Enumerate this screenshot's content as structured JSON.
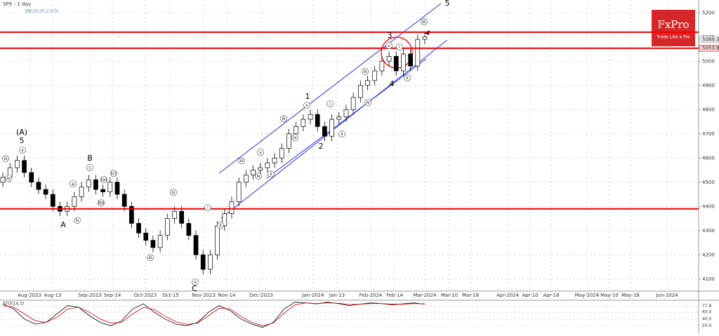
{
  "header": {
    "symbol": "SPX - 1 day",
    "indicator": "BB(20,20,2,0,0)"
  },
  "logo": {
    "brand": "FxPro",
    "tagline": "Trade Like a Pro"
  },
  "chart_data": {
    "type": "candlestick",
    "open": [
      4500,
      4520,
      4560,
      4590,
      4540,
      4500,
      4470,
      4450,
      4400,
      4380,
      4400,
      4440,
      4480,
      4510,
      4470,
      4460,
      4500,
      4450,
      4400,
      4330,
      4290,
      4260,
      4230,
      4280,
      4350,
      4380,
      4330,
      4280,
      4200,
      4140,
      4200,
      4320,
      4370,
      4420,
      4500,
      4530,
      4550,
      4560,
      4580,
      4600,
      4640,
      4700,
      4730,
      4760,
      4780,
      4730,
      4690,
      4760,
      4770,
      4800,
      4850,
      4900,
      4920,
      4960,
      5000,
      5020,
      4960,
      5030,
      4980,
      5090
    ],
    "high": [
      4540,
      4580,
      4610,
      4610,
      4560,
      4520,
      4490,
      4470,
      4420,
      4420,
      4460,
      4500,
      4530,
      4530,
      4490,
      4520,
      4520,
      4470,
      4420,
      4350,
      4310,
      4280,
      4300,
      4370,
      4400,
      4400,
      4350,
      4300,
      4220,
      4220,
      4340,
      4390,
      4440,
      4520,
      4550,
      4570,
      4580,
      4600,
      4620,
      4660,
      4720,
      4750,
      4780,
      4800,
      4800,
      4750,
      4780,
      4790,
      4820,
      4870,
      4920,
      4940,
      4980,
      5020,
      5040,
      5040,
      5050,
      5050,
      5110,
      5120
    ],
    "low": [
      4480,
      4500,
      4540,
      4520,
      4480,
      4450,
      4430,
      4380,
      4360,
      4360,
      4380,
      4420,
      4460,
      4450,
      4440,
      4440,
      4430,
      4380,
      4310,
      4270,
      4240,
      4210,
      4210,
      4260,
      4330,
      4310,
      4260,
      4180,
      4120,
      4120,
      4180,
      4300,
      4350,
      4400,
      4480,
      4510,
      4530,
      4540,
      4560,
      4580,
      4620,
      4680,
      4710,
      4740,
      4710,
      4670,
      4670,
      4740,
      4750,
      4780,
      4830,
      4880,
      4900,
      4940,
      4980,
      4940,
      4940,
      4960,
      4960,
      5070
    ],
    "close": [
      4520,
      4560,
      4590,
      4540,
      4500,
      4470,
      4450,
      4400,
      4380,
      4400,
      4440,
      4480,
      4510,
      4470,
      4460,
      4500,
      4450,
      4400,
      4330,
      4290,
      4260,
      4230,
      4280,
      4350,
      4380,
      4330,
      4280,
      4200,
      4140,
      4200,
      4320,
      4370,
      4420,
      4500,
      4530,
      4550,
      4560,
      4580,
      4600,
      4640,
      4700,
      4730,
      4760,
      4780,
      4730,
      4690,
      4760,
      4770,
      4800,
      4850,
      4900,
      4920,
      4960,
      5000,
      5020,
      4960,
      5030,
      4980,
      5090,
      5100
    ],
    "ylim": [
      4050,
      5250
    ],
    "yticks": [
      4100,
      4200,
      4300,
      4400,
      4500,
      4600,
      4700,
      4800,
      4900,
      5000,
      5100,
      5200
    ],
    "xlabels": [
      "Aug-2023",
      "Aug-13",
      "Sep-2023",
      "Sep-14",
      "Oct-2023",
      "Oct-15",
      "Nov-2023",
      "Nov-14",
      "Dec-2023",
      "Jan-2024",
      "Jan-13",
      "Feb-2024",
      "Feb-14",
      "Mar-2024",
      "Mar-10",
      "Mar-18",
      "Apr-2024",
      "Apr-10",
      "Apr-18",
      "May-2024",
      "May-10",
      "May-18",
      "Jun-2024"
    ],
    "levels": [
      5120,
      5053.8,
      4390
    ],
    "last_price": 5089.3,
    "waves": [
      "(A)",
      "5",
      "B",
      "A",
      "C",
      "1",
      "2",
      "3",
      "4",
      "5"
    ],
    "wave_marks": [
      "iii",
      "iv",
      "v",
      "a",
      "b",
      "c",
      "(a)",
      "(b)",
      "(c)",
      "iii",
      "iv",
      "v",
      "i",
      "ii",
      "iii",
      "v",
      "iv",
      "ii",
      "iv",
      "iii",
      "v",
      "i",
      "ii",
      "iii",
      "iv",
      "v",
      "i",
      "ii",
      "iii"
    ],
    "grid": true
  },
  "stoch": {
    "label": "STO(14,3)",
    "ylim": [
      0,
      100
    ],
    "yticks": [
      {
        "value": 77.8,
        "label": "77.8"
      },
      {
        "value": 60,
        "label": "60.0"
      },
      {
        "value": 40,
        "label": "40.0"
      },
      {
        "value": 20,
        "label": "20.0"
      }
    ],
    "series": [
      {
        "name": "%K",
        "color": "#000000",
        "values": [
          85,
          70,
          40,
          25,
          30,
          55,
          80,
          75,
          50,
          30,
          20,
          35,
          70,
          85,
          60,
          40,
          25,
          20,
          30,
          60,
          80,
          65,
          40,
          25,
          15,
          30,
          70,
          90,
          88,
          85,
          90,
          86,
          80,
          84,
          88,
          86,
          82,
          85,
          88,
          84
        ]
      },
      {
        "name": "%D",
        "color": "#cc0000",
        "values": [
          80,
          75,
          55,
          35,
          30,
          45,
          70,
          75,
          60,
          40,
          28,
          30,
          55,
          75,
          68,
          48,
          32,
          24,
          28,
          50,
          72,
          70,
          48,
          30,
          20,
          28,
          58,
          82,
          88,
          86,
          88,
          87,
          83,
          84,
          86,
          86,
          84,
          84,
          86,
          85
        ]
      }
    ]
  }
}
